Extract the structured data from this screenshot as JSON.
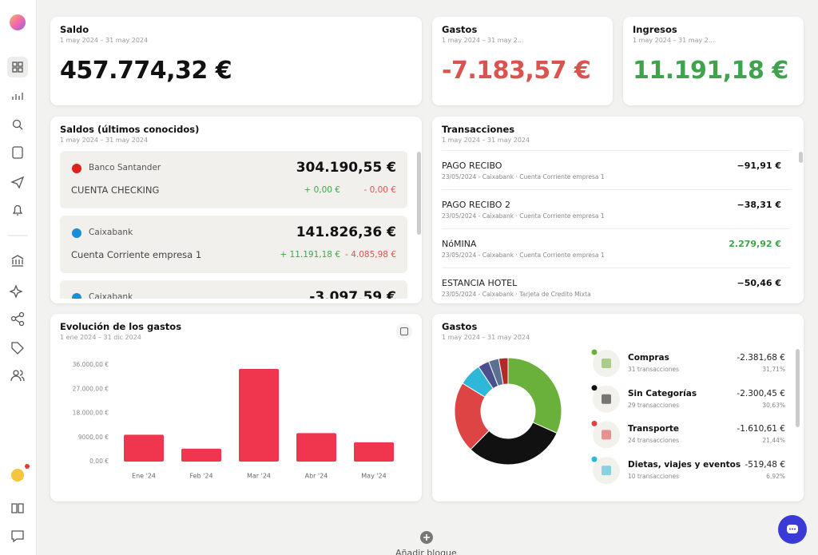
{
  "summary": [
    {
      "title": "Saldo",
      "period": "1 may 2024 – 31 may 2024",
      "amount": "457.774,32 €"
    },
    {
      "title": "Gastos",
      "period": "1 may 2024 – 31 may 2...",
      "amount": "-7.183,57 €"
    },
    {
      "title": "Ingresos",
      "period": "1 may 2024 – 31 may 2...",
      "amount": "11.191,18 €"
    }
  ],
  "balances": {
    "title": "Saldos (últimos conocidos)",
    "period": "1 may 2024 – 31 may 2024",
    "accounts": [
      {
        "bank": "Banco Santander",
        "name": "CUENTA CHECKING",
        "amount": "304.190,55 €",
        "in": "+ 0,00 €",
        "out": "- 0,00 €"
      },
      {
        "bank": "Caixabank",
        "name": "Cuenta Corriente empresa 1",
        "amount": "141.826,36 €",
        "in": "+ 11.191,18 €",
        "out": "- 4.085,98 €"
      },
      {
        "bank": "Caixabank",
        "amount": "-3.097,59 €"
      }
    ]
  },
  "transactions": {
    "title": "Transacciones",
    "period": "1 may 2024 – 31 may 2024",
    "items": [
      {
        "description": "PAGO RECIBO",
        "meta": "23/05/2024 - Caixabank · Cuenta Corriente empresa 1",
        "amount": "−91,91 €"
      },
      {
        "description": "PAGO RECIBO 2",
        "meta": "23/05/2024 - Caixabank · Cuenta Corriente empresa 1",
        "amount": "−38,31 €"
      },
      {
        "description": "NóMINA",
        "meta": "23/05/2024 - Caixabank · Cuenta Corriente empresa 1",
        "amount": "2.279,92 €"
      },
      {
        "description": "ESTANCIA HOTEL",
        "meta": "23/05/2024 - Caixabank · Tarjeta de Credito Mixta",
        "amount": "−50,46 €"
      }
    ]
  },
  "expense_evolution": {
    "title": "Evolución de los gastos",
    "period": "1 ene 2024 – 31 dic 2024",
    "chart_data": {
      "type": "bar",
      "categories": [
        "Ene '24",
        "Feb '24",
        "Mar '24",
        "Abr '24",
        "May '24"
      ],
      "values": [
        10000,
        4800,
        34500,
        10600,
        7183.57
      ],
      "color": "#f0364f",
      "ylim": [
        0,
        36000
      ],
      "yticks": [
        {
          "value": 0,
          "label": "0,00 €"
        },
        {
          "value": 9000,
          "label": "9000,00 €"
        },
        {
          "value": 18000,
          "label": "18.000,00 €"
        },
        {
          "value": 27000,
          "label": "27.000,00 €"
        },
        {
          "value": 36000,
          "label": "36.000,00 €"
        }
      ],
      "grid": false
    }
  },
  "expense_breakdown": {
    "title": "Gastos",
    "period": "1 may 2024 – 31 may 2024",
    "chart_data": {
      "type": "pie",
      "categories": [
        "Compras",
        "Sin Categorías",
        "Transporte",
        "Dietas, viajes y eventos",
        null,
        null,
        null
      ],
      "values": [
        31.71,
        30.63,
        21.44,
        6.92,
        3.4,
        3.1,
        2.8
      ],
      "value_labels": [
        "31,71%",
        "30,63%",
        "21,44%",
        "6,92%",
        null,
        null,
        null
      ],
      "colors": [
        "#6ab13c",
        "#111111",
        "#dd4444",
        "#2db7d9",
        "#4b4f8e",
        "#5b7192",
        "#b32828"
      ]
    },
    "items": [
      {
        "count": "31 transacciones",
        "amount": "-2.381,68 €"
      },
      {
        "count": "29 transacciones",
        "amount": "-2.300,45 €"
      },
      {
        "count": "24 transacciones",
        "amount": "-1.610,61 €"
      },
      {
        "count": "10 transacciones",
        "amount": "-519,48 €"
      }
    ]
  },
  "add_block": "Añadir bloque"
}
